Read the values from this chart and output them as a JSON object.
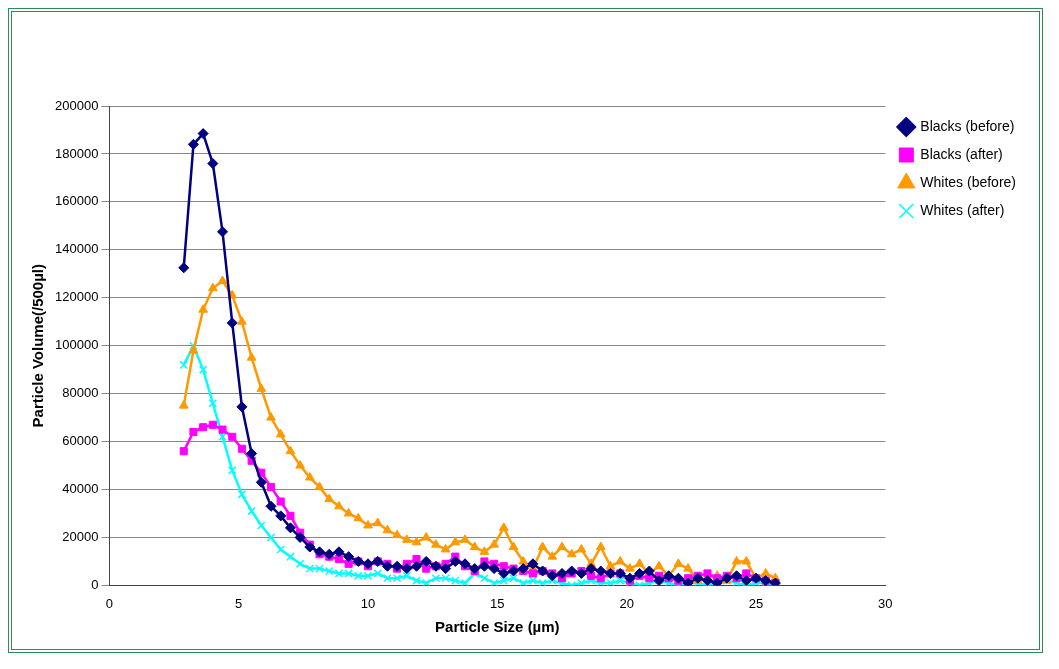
{
  "chart_data": {
    "type": "line",
    "xlabel": "Particle Size (µm)",
    "ylabel": "Particle Volume(/500µl)",
    "xlim": [
      0,
      30
    ],
    "xticks": [
      0,
      5,
      10,
      15,
      20,
      25,
      30
    ],
    "ylim": [
      0,
      200000
    ],
    "yticks": [
      0,
      20000,
      40000,
      60000,
      80000,
      100000,
      120000,
      140000,
      160000,
      180000,
      200000
    ],
    "grid": "y",
    "legend": "right",
    "line_style": "solid",
    "x": [
      2.875,
      3.25,
      3.625,
      4,
      4.375,
      4.75,
      5.125,
      5.5,
      5.875,
      6.25,
      6.625,
      7,
      7.375,
      7.75,
      8.125,
      8.5,
      8.875,
      9.25,
      9.625,
      10,
      10.375,
      10.75,
      11.125,
      11.5,
      11.875,
      12.25,
      12.625,
      13,
      13.375,
      13.75,
      14.125,
      14.5,
      14.875,
      15.25,
      15.625,
      16,
      16.375,
      16.75,
      17.125,
      17.5,
      17.875,
      18.25,
      18.625,
      19,
      19.375,
      19.75,
      20.125,
      20.5,
      20.875,
      21.25,
      21.625,
      22,
      22.375,
      22.75,
      23.125,
      23.5,
      23.875,
      24.25,
      24.625,
      25,
      25.375,
      25.75
    ],
    "series": [
      {
        "name": "Blacks (before)",
        "color": "#000080",
        "marker": "diamond",
        "values": [
          132500,
          184000,
          188500,
          176000,
          147500,
          109500,
          74500,
          55000,
          43000,
          33000,
          29000,
          24000,
          20000,
          16000,
          14000,
          13000,
          14000,
          12000,
          10000,
          9000,
          10000,
          8000,
          8000,
          7000,
          8000,
          10000,
          8000,
          7000,
          10000,
          9000,
          7000,
          8000,
          7000,
          5000,
          6000,
          7000,
          9000,
          6000,
          4000,
          5000,
          6000,
          5000,
          7000,
          6000,
          5000,
          5000,
          3000,
          5000,
          6000,
          2000,
          4000,
          3000,
          1000,
          3000,
          2000,
          1000,
          3000,
          4000,
          2000,
          3000,
          2000,
          1000
        ]
      },
      {
        "name": "Blacks (after)",
        "color": "#ff00ff",
        "marker": "square",
        "values": [
          56000,
          64000,
          66000,
          67000,
          65000,
          62000,
          57000,
          52000,
          47000,
          41000,
          35000,
          29000,
          22000,
          17000,
          13000,
          12000,
          11000,
          9000,
          10000,
          8000,
          10000,
          9000,
          7000,
          9000,
          11000,
          7000,
          8000,
          9000,
          12000,
          8000,
          6000,
          10000,
          9000,
          8000,
          7000,
          6000,
          5000,
          6000,
          5000,
          3000,
          5000,
          6000,
          4000,
          3000,
          5000,
          5000,
          2000,
          4000,
          3000,
          4000,
          3000,
          2000,
          3000,
          4000,
          5000,
          3000,
          4000,
          3000,
          5000,
          3000,
          2000,
          1000
        ]
      },
      {
        "name": "Whites (before)",
        "color": "#ff9900",
        "marker": "triangle",
        "values": [
          75000,
          98000,
          115000,
          124000,
          127000,
          121000,
          110000,
          95000,
          82000,
          70000,
          63000,
          56000,
          50000,
          45000,
          41000,
          36000,
          33000,
          30000,
          28000,
          25000,
          26000,
          23000,
          21000,
          19000,
          18000,
          20000,
          17000,
          15000,
          18000,
          19000,
          16000,
          14000,
          17000,
          24000,
          16000,
          10000,
          7000,
          16000,
          12000,
          16000,
          13000,
          15000,
          9000,
          16000,
          8000,
          10000,
          7000,
          9000,
          5000,
          8000,
          4000,
          9000,
          7000,
          2000,
          3000,
          4000,
          2000,
          10000,
          10000,
          3000,
          5000,
          3000
        ]
      },
      {
        "name": "Whites (after)",
        "color": "#00ffff",
        "marker": "cross",
        "values": [
          92000,
          100000,
          90000,
          76000,
          62000,
          48000,
          38000,
          31000,
          25000,
          20000,
          15000,
          12000,
          9000,
          7000,
          7000,
          6000,
          5000,
          5000,
          4000,
          4000,
          5000,
          3000,
          3000,
          4000,
          2000,
          1000,
          3000,
          3000,
          2000,
          1000,
          5000,
          3000,
          1000,
          2000,
          3000,
          1000,
          2000,
          1000,
          2000,
          1000,
          0,
          1000,
          2000,
          1000,
          1000,
          2000,
          1000,
          0,
          1000,
          2000,
          1000,
          0,
          1000,
          1000,
          0,
          1000,
          2000,
          1000,
          0,
          1000,
          1000,
          0
        ]
      }
    ]
  }
}
